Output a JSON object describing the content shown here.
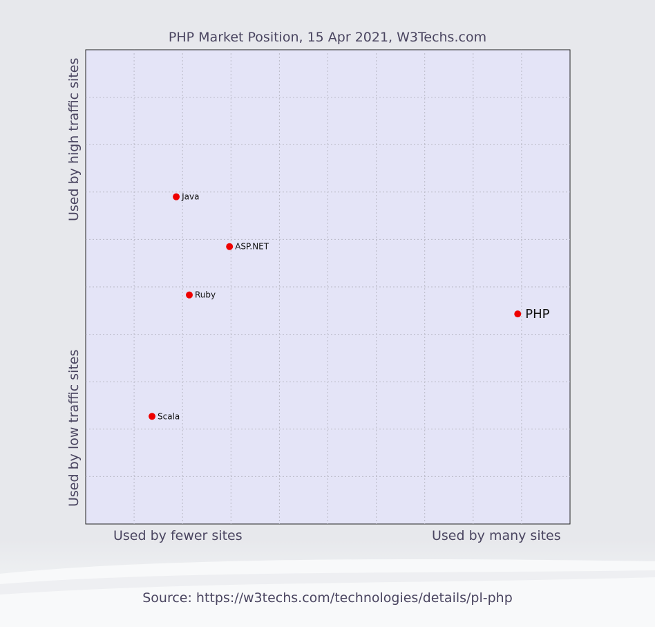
{
  "chart_data": {
    "type": "scatter",
    "title": "PHP Market Position, 15 Apr 2021, W3Techs.com",
    "x_axis": {
      "low_label": "Used by fewer sites",
      "high_label": "Used by many sites"
    },
    "y_axis": {
      "low_label": "Used by low traffic sites",
      "high_label": "Used by high traffic sites"
    },
    "xlim": [
      0,
      10
    ],
    "ylim": [
      0,
      10
    ],
    "grid": true,
    "point_color": "#ee0000",
    "plot_background": "#e4e4f7",
    "points": [
      {
        "label": "Java",
        "x": 1.87,
        "y": 6.9
      },
      {
        "label": "ASP.NET",
        "x": 2.97,
        "y": 5.85
      },
      {
        "label": "Ruby",
        "x": 2.14,
        "y": 4.83
      },
      {
        "label": "PHP",
        "x": 8.92,
        "y": 4.43
      },
      {
        "label": "Scala",
        "x": 1.37,
        "y": 2.27
      }
    ],
    "highlight": "PHP"
  },
  "source": "Source: https://w3techs.com/technologies/details/pl-php"
}
